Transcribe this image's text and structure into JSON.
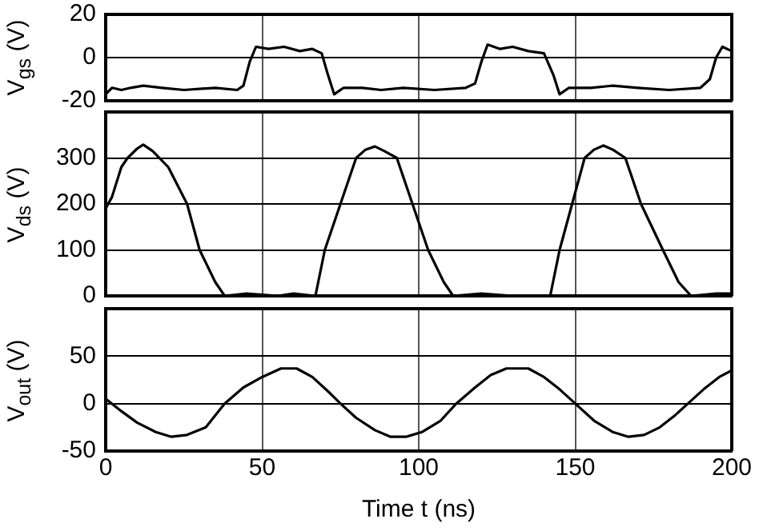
{
  "chart_data": [
    {
      "type": "line",
      "ylabel": "V$_{gs}$ (V)",
      "xlim": [
        0,
        200
      ],
      "xticks": [
        0,
        50,
        100,
        150,
        200
      ],
      "ylim": [
        -20,
        20
      ],
      "yticks": [
        -20,
        0,
        20
      ],
      "grid": true,
      "tick_labels": "y",
      "series": [
        {
          "color": "#000000",
          "x": [
            0,
            2,
            5,
            8,
            12,
            18,
            25,
            35,
            42,
            44,
            46,
            48,
            52,
            57,
            62,
            66,
            69,
            71,
            73,
            76,
            82,
            88,
            95,
            105,
            115,
            118,
            120,
            122,
            126,
            130,
            135,
            140,
            143,
            145,
            148,
            155,
            162,
            170,
            180,
            190,
            193,
            195,
            197,
            200
          ],
          "values": [
            -17,
            -14,
            -15,
            -14,
            -13,
            -14,
            -15,
            -14,
            -15,
            -13,
            -2,
            5,
            4,
            5,
            3,
            4,
            2,
            -8,
            -17,
            -14,
            -14,
            -15,
            -14,
            -15,
            -14,
            -12,
            -2,
            6,
            4,
            5,
            3,
            2,
            -8,
            -17,
            -14,
            -14,
            -13,
            -14,
            -15,
            -14,
            -10,
            0,
            5,
            3
          ]
        }
      ]
    },
    {
      "type": "line",
      "ylabel": "V$_{ds}$ (V)",
      "xlim": [
        0,
        200
      ],
      "xticks": [
        0,
        50,
        100,
        150,
        200
      ],
      "ylim": [
        0,
        400
      ],
      "yticks": [
        0,
        100,
        200,
        300
      ],
      "grid": true,
      "tick_labels": "y",
      "series": [
        {
          "color": "#000000",
          "x": [
            0,
            2,
            5,
            7,
            10,
            12,
            15,
            20,
            26,
            30,
            35,
            38,
            45,
            55,
            60,
            67,
            70,
            75,
            80,
            83,
            86,
            89,
            93,
            98,
            103,
            108,
            111,
            120,
            130,
            142,
            145,
            149,
            153,
            156,
            159,
            162,
            166,
            171,
            178,
            183,
            187,
            195,
            200
          ],
          "values": [
            190,
            215,
            280,
            300,
            320,
            329,
            315,
            280,
            200,
            100,
            30,
            0,
            5,
            0,
            5,
            0,
            100,
            200,
            300,
            318,
            325,
            315,
            300,
            200,
            100,
            30,
            0,
            5,
            0,
            0,
            100,
            200,
            300,
            318,
            327,
            318,
            300,
            200,
            100,
            30,
            0,
            5,
            5
          ]
        }
      ]
    },
    {
      "type": "line",
      "ylabel": "V$_{out}$ (V)",
      "xlabel": "Time t (ns)",
      "xlim": [
        0,
        200
      ],
      "xticks": [
        0,
        50,
        100,
        150,
        200
      ],
      "ylim": [
        -50,
        100
      ],
      "yticks": [
        -50,
        0,
        50
      ],
      "grid": true,
      "series": [
        {
          "color": "#000000",
          "x": [
            0,
            5,
            10,
            16,
            21,
            26,
            32,
            38,
            44,
            50,
            56,
            61,
            66,
            71,
            75,
            80,
            86,
            91,
            96,
            101,
            107,
            112,
            118,
            123,
            128,
            135,
            140,
            145,
            150,
            156,
            162,
            167,
            172,
            177,
            182,
            186,
            191,
            196,
            200
          ],
          "values": [
            5,
            -8,
            -20,
            -30,
            -35,
            -33,
            -25,
            0,
            17,
            28,
            37,
            37,
            28,
            13,
            0,
            -15,
            -28,
            -35,
            -35,
            -30,
            -18,
            0,
            17,
            30,
            37,
            37,
            28,
            15,
            0,
            -18,
            -30,
            -35,
            -33,
            -25,
            -12,
            0,
            15,
            28,
            35
          ]
        }
      ]
    }
  ]
}
